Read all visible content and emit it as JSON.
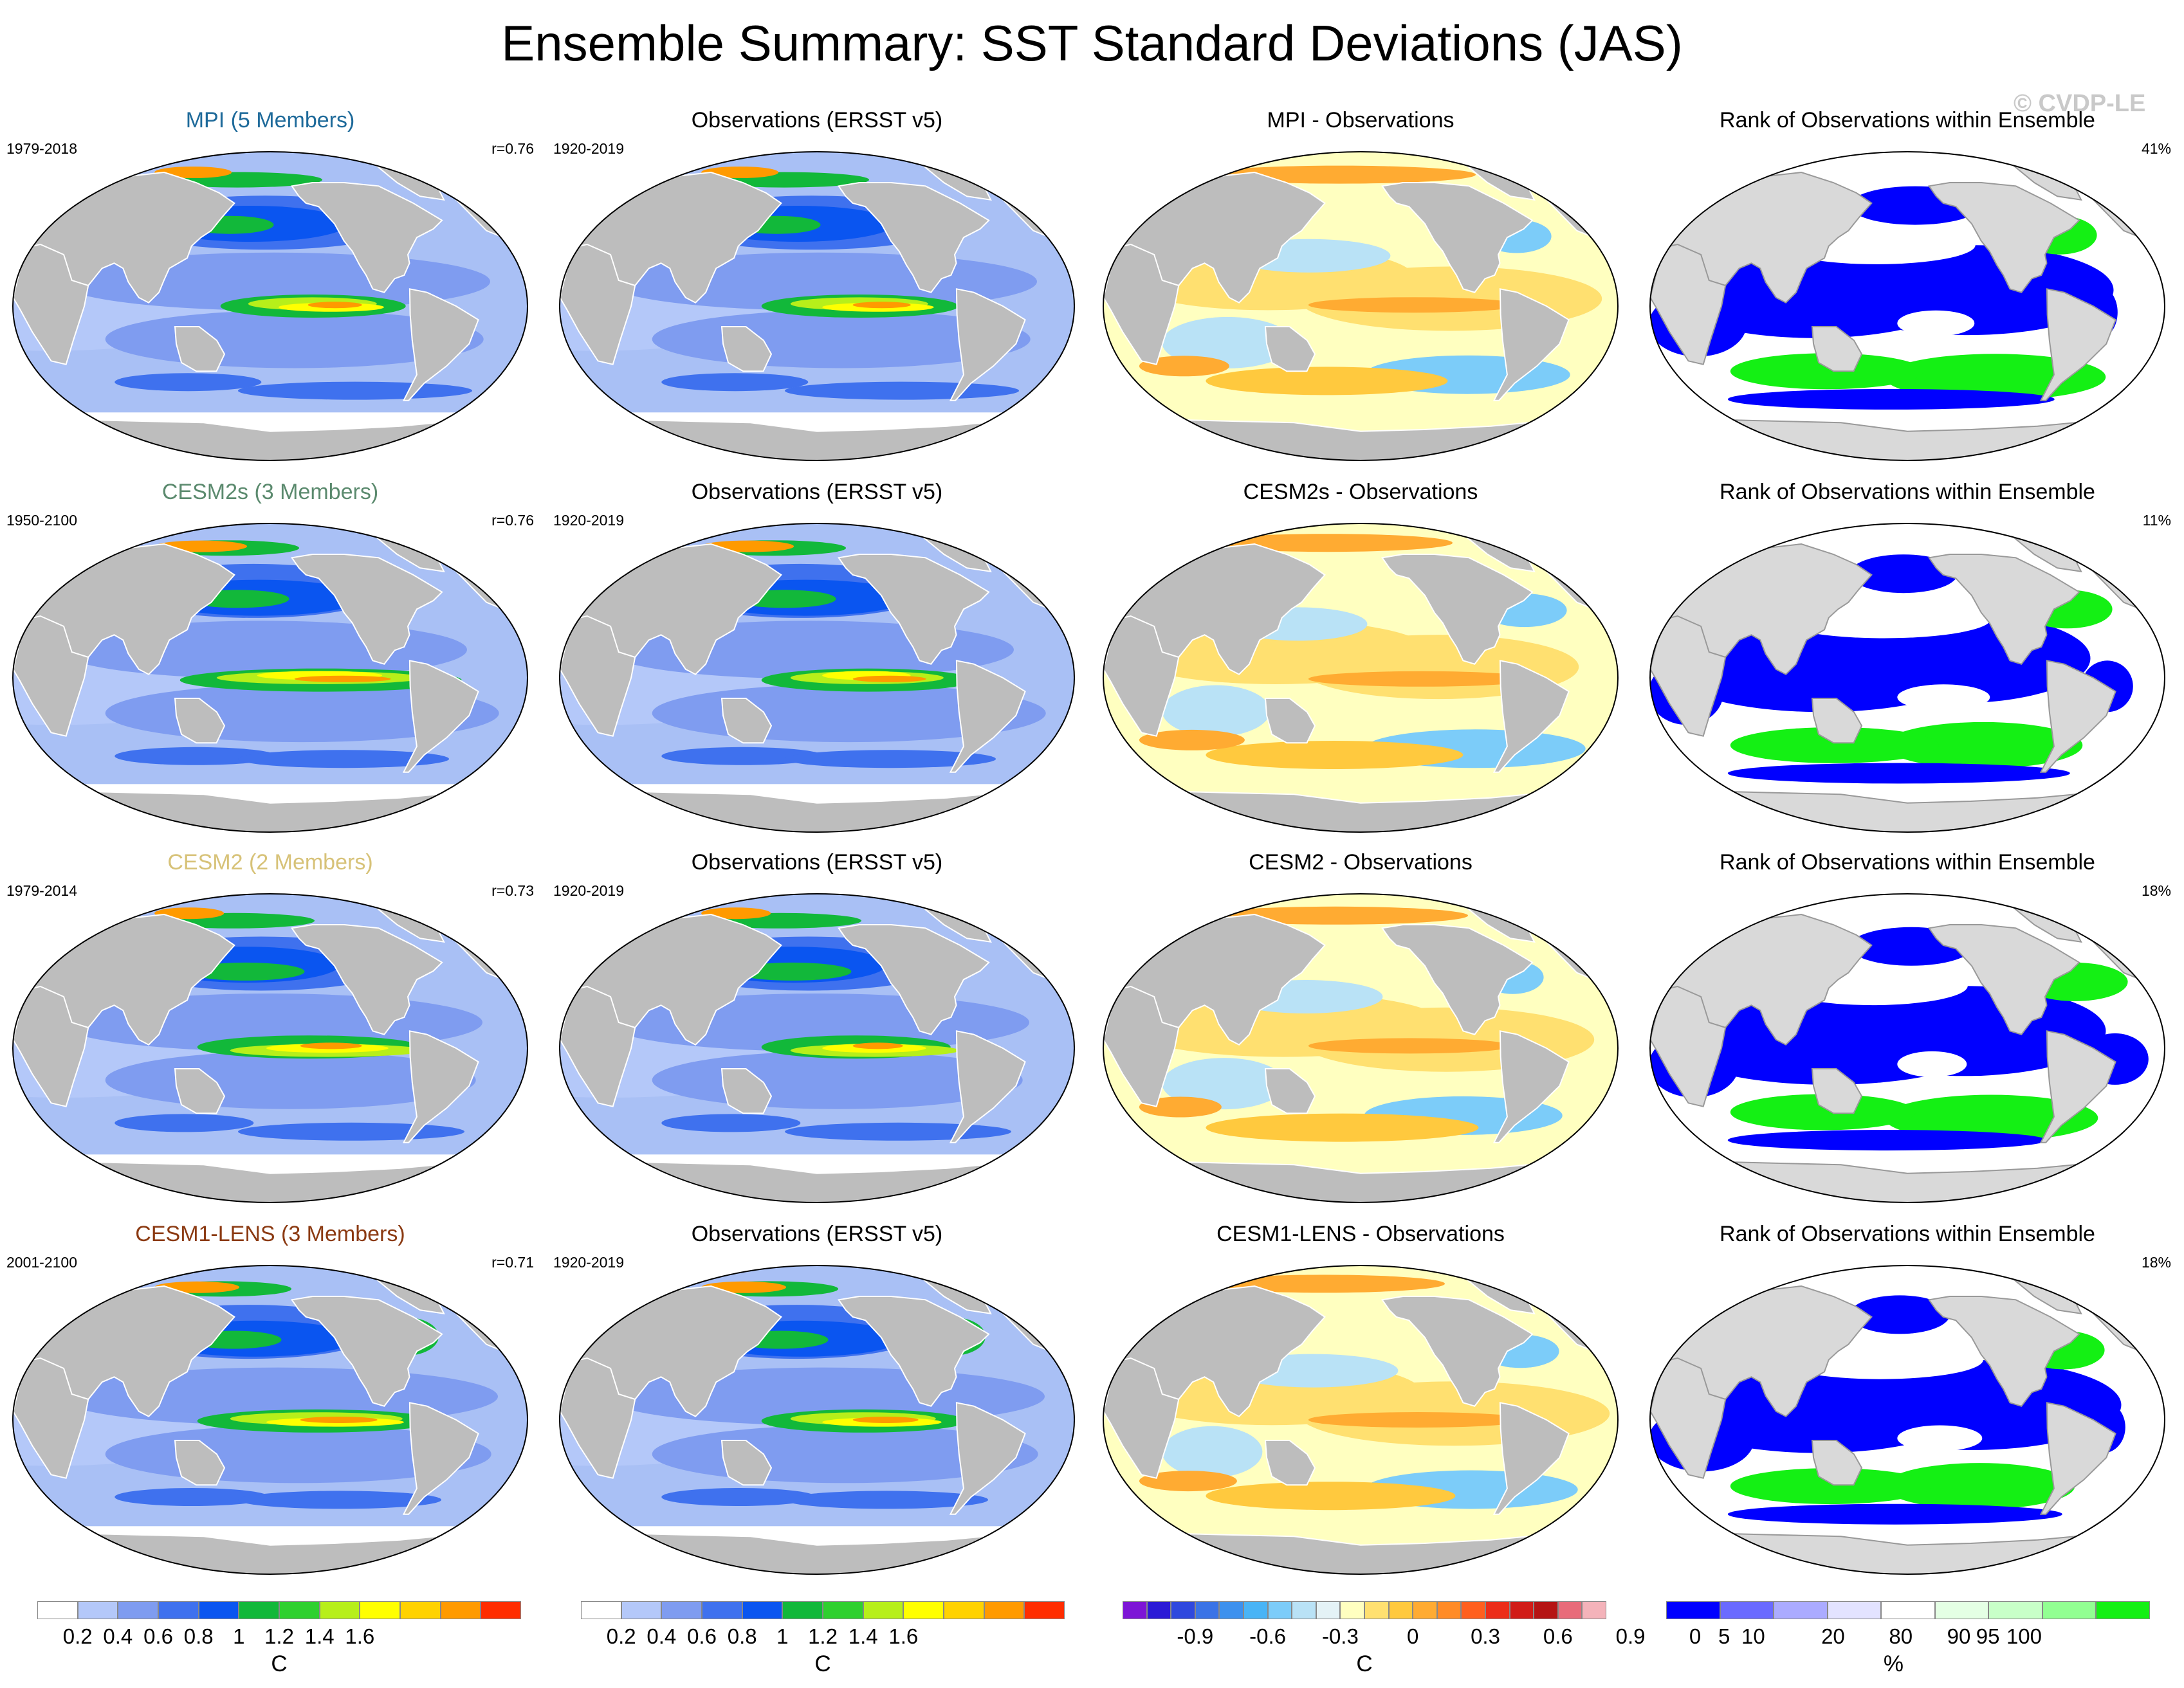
{
  "title": "Ensemble Summary: SST Standard Deviations (JAS)",
  "watermark": "© CVDP-LE",
  "colors": {
    "land": "#bdbdbd",
    "ocean_base": "#a9c0f5",
    "std_palette": [
      "#ffffff",
      "#b4c8f9",
      "#7f9cf0",
      "#3f71ee",
      "#0a55f0",
      "#12b83a",
      "#2fd02f",
      "#b7ef1a",
      "#ffff00",
      "#ffd200",
      "#ff9a00",
      "#ff2d00"
    ],
    "diff_palette": [
      "#7d15d6",
      "#2b1ad6",
      "#2f48de",
      "#3a73e6",
      "#3d91ee",
      "#49b4f6",
      "#7cccf9",
      "#b9e2f6",
      "#e4f2f6",
      "#ffffc0",
      "#ffe070",
      "#ffc93e",
      "#ffab32",
      "#ff8b27",
      "#ff5f1e",
      "#ec2d19",
      "#d11c18",
      "#b51414",
      "#e86b7a",
      "#f4b3ba"
    ],
    "rank_palette": [
      "#0000ff",
      "#6a6aff",
      "#ababff",
      "#e3e3ff",
      "#ffffff",
      "#e4ffe4",
      "#c8ffc8",
      "#92ff92",
      "#14f014"
    ]
  },
  "rows": [
    {
      "model": {
        "title": "MPI (5 Members)",
        "title_color": "#1e6a9a",
        "years": "1979-2018",
        "r": "r=0.76"
      },
      "obs": {
        "title": "Observations (ERSST v5)",
        "years": "1920-2019"
      },
      "diff": {
        "title": "MPI - Observations"
      },
      "rank": {
        "title": "Rank of Observations within Ensemble",
        "pct": "41%"
      }
    },
    {
      "model": {
        "title": "CESM2s (3 Members)",
        "title_color": "#5b8a6e",
        "years": "1950-2100",
        "r": "r=0.76"
      },
      "obs": {
        "title": "Observations (ERSST v5)",
        "years": "1920-2019"
      },
      "diff": {
        "title": "CESM2s - Observations"
      },
      "rank": {
        "title": "Rank of Observations within Ensemble",
        "pct": "11%"
      }
    },
    {
      "model": {
        "title": "CESM2 (2 Members)",
        "title_color": "#d7c278",
        "years": "1979-2014",
        "r": "r=0.73"
      },
      "obs": {
        "title": "Observations (ERSST v5)",
        "years": "1920-2019"
      },
      "diff": {
        "title": "CESM2 - Observations"
      },
      "rank": {
        "title": "Rank of Observations within Ensemble",
        "pct": "18%"
      }
    },
    {
      "model": {
        "title": "CESM1-LENS (3 Members)",
        "title_color": "#8b3a12",
        "years": "2001-2100",
        "r": "r=0.71"
      },
      "obs": {
        "title": "Observations (ERSST v5)",
        "years": "1920-2019"
      },
      "diff": {
        "title": "CESM1-LENS - Observations"
      },
      "rank": {
        "title": "Rank of Observations within Ensemble",
        "pct": "18%"
      }
    }
  ],
  "colorbars": [
    {
      "id": "std1",
      "unit": "C",
      "ticks": [
        "0.2",
        "0.4",
        "0.6",
        "0.8",
        "1",
        "1.2",
        "1.4",
        "1.6"
      ]
    },
    {
      "id": "std2",
      "unit": "C",
      "ticks": [
        "0.2",
        "0.4",
        "0.6",
        "0.8",
        "1",
        "1.2",
        "1.4",
        "1.6"
      ]
    },
    {
      "id": "diff",
      "unit": "C",
      "ticks": [
        "-0.9",
        "-0.6",
        "-0.3",
        "0",
        "0.3",
        "0.6",
        "0.9"
      ]
    },
    {
      "id": "rank",
      "unit": "%",
      "ticks": [
        "0",
        "5",
        "10",
        "20",
        "80",
        "90",
        "95",
        "100"
      ]
    }
  ]
}
